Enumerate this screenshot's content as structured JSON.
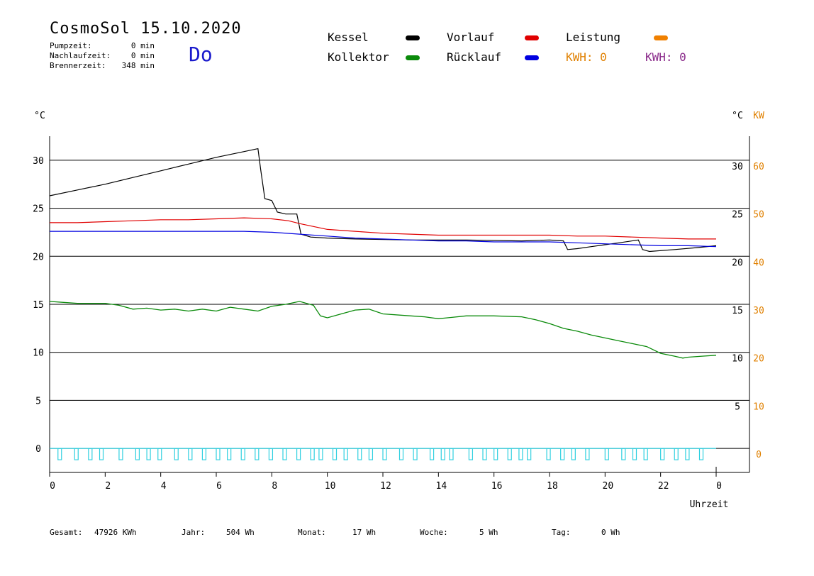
{
  "header": {
    "title": "CosmoSol 15.10.2020",
    "weekday": "Do",
    "stats": [
      {
        "label": "Pumpzeit:",
        "value": "0 min"
      },
      {
        "label": "Nachlaufzeit:",
        "value": "0 min"
      },
      {
        "label": "Brennerzeit:",
        "value": "348 min"
      }
    ]
  },
  "legend": {
    "items": [
      {
        "label": "Kessel",
        "color": "#000000"
      },
      {
        "label": "Vorlauf",
        "color": "#e00000"
      },
      {
        "label": "Leistung",
        "color": "#f08000"
      },
      {
        "label": "Kollektor",
        "color": "#0a8a0a"
      },
      {
        "label": "Rücklauf",
        "color": "#0000e0"
      }
    ],
    "kwh_orange": "KWH: 0",
    "kwh_purple": "KWH: 0",
    "kwh_orange_color": "#e08000",
    "kwh_purple_color": "#8a2a8a"
  },
  "footer": {
    "gesamt_label": "Gesamt:",
    "gesamt_value": "47926 KWh",
    "jahr_label": "Jahr:",
    "jahr_value": "504 Wh",
    "monat_label": "Monat:",
    "monat_value": "17 Wh",
    "woche_label": "Woche:",
    "woche_value": "5 Wh",
    "tag_label": "Tag:",
    "tag_value": "0 Wh"
  },
  "chart_data": {
    "type": "line",
    "xlabel": "Uhrzeit",
    "x_ticks": [
      "0",
      "2",
      "4",
      "6",
      "8",
      "10",
      "12",
      "14",
      "16",
      "18",
      "20",
      "22",
      "0"
    ],
    "x_range": [
      0,
      24
    ],
    "y_left_unit": "°C",
    "y_right_unit": "°C",
    "y_right2_unit": "KW",
    "y_range": [
      -2.5,
      32.5
    ],
    "y_ticks_left": [
      "0",
      "5",
      "10",
      "15",
      "20",
      "25",
      "30"
    ],
    "y_ticks_right": [
      "5",
      "10",
      "15",
      "20",
      "25",
      "30"
    ],
    "y_ticks_kw": [
      "0",
      "10",
      "20",
      "30",
      "40",
      "50",
      "60"
    ],
    "grid": true,
    "series": [
      {
        "name": "Kessel",
        "color": "#000000",
        "points": [
          [
            0,
            26.3
          ],
          [
            1,
            26.9
          ],
          [
            2,
            27.5
          ],
          [
            3,
            28.2
          ],
          [
            4,
            28.9
          ],
          [
            5,
            29.6
          ],
          [
            6,
            30.3
          ],
          [
            7,
            30.9
          ],
          [
            7.5,
            31.2
          ],
          [
            7.6,
            29
          ],
          [
            7.75,
            26
          ],
          [
            8,
            25.8
          ],
          [
            8.2,
            24.6
          ],
          [
            8.5,
            24.4
          ],
          [
            8.9,
            24.4
          ],
          [
            9.05,
            22.3
          ],
          [
            9.4,
            22.0
          ],
          [
            10,
            21.9
          ],
          [
            11,
            21.8
          ],
          [
            13,
            21.7
          ],
          [
            15,
            21.7
          ],
          [
            17,
            21.6
          ],
          [
            18,
            21.7
          ],
          [
            18.5,
            21.6
          ],
          [
            18.65,
            20.7
          ],
          [
            19,
            20.8
          ],
          [
            19.5,
            21.0
          ],
          [
            20,
            21.2
          ],
          [
            20.5,
            21.4
          ],
          [
            21.2,
            21.7
          ],
          [
            21.35,
            20.7
          ],
          [
            21.6,
            20.5
          ],
          [
            22.5,
            20.7
          ],
          [
            23.3,
            20.9
          ],
          [
            24,
            21.1
          ]
        ]
      },
      {
        "name": "Vorlauf",
        "color": "#e00000",
        "points": [
          [
            0,
            23.5
          ],
          [
            1,
            23.5
          ],
          [
            2,
            23.6
          ],
          [
            3,
            23.7
          ],
          [
            4,
            23.8
          ],
          [
            5,
            23.8
          ],
          [
            6,
            23.9
          ],
          [
            7,
            24.0
          ],
          [
            8,
            23.9
          ],
          [
            8.6,
            23.7
          ],
          [
            9,
            23.4
          ],
          [
            9.5,
            23.1
          ],
          [
            10,
            22.8
          ],
          [
            11,
            22.6
          ],
          [
            12,
            22.4
          ],
          [
            13,
            22.3
          ],
          [
            14,
            22.2
          ],
          [
            16,
            22.2
          ],
          [
            18,
            22.2
          ],
          [
            19,
            22.1
          ],
          [
            20,
            22.1
          ],
          [
            21,
            22.0
          ],
          [
            22,
            21.9
          ],
          [
            23,
            21.8
          ],
          [
            24,
            21.8
          ]
        ]
      },
      {
        "name": "Rücklauf",
        "color": "#0000e0",
        "points": [
          [
            0,
            22.6
          ],
          [
            2,
            22.6
          ],
          [
            4,
            22.6
          ],
          [
            6,
            22.6
          ],
          [
            7,
            22.6
          ],
          [
            8,
            22.5
          ],
          [
            9,
            22.3
          ],
          [
            10,
            22.1
          ],
          [
            11,
            21.9
          ],
          [
            12,
            21.8
          ],
          [
            13,
            21.7
          ],
          [
            14,
            21.6
          ],
          [
            15,
            21.6
          ],
          [
            16,
            21.5
          ],
          [
            17,
            21.5
          ],
          [
            18,
            21.5
          ],
          [
            19,
            21.4
          ],
          [
            20,
            21.3
          ],
          [
            21,
            21.2
          ],
          [
            22,
            21.1
          ],
          [
            23,
            21.1
          ],
          [
            24,
            21.0
          ]
        ]
      },
      {
        "name": "Kollektor",
        "color": "#0a8a0a",
        "points": [
          [
            0,
            15.3
          ],
          [
            0.5,
            15.2
          ],
          [
            1,
            15.1
          ],
          [
            2,
            15.1
          ],
          [
            2.5,
            14.9
          ],
          [
            3,
            14.5
          ],
          [
            3.5,
            14.6
          ],
          [
            4,
            14.4
          ],
          [
            4.5,
            14.5
          ],
          [
            5,
            14.3
          ],
          [
            5.5,
            14.5
          ],
          [
            6,
            14.3
          ],
          [
            6.5,
            14.7
          ],
          [
            7,
            14.5
          ],
          [
            7.5,
            14.3
          ],
          [
            8,
            14.8
          ],
          [
            8.5,
            15.0
          ],
          [
            9,
            15.3
          ],
          [
            9.5,
            14.9
          ],
          [
            9.75,
            13.8
          ],
          [
            10,
            13.6
          ],
          [
            10.5,
            14.0
          ],
          [
            11,
            14.4
          ],
          [
            11.5,
            14.5
          ],
          [
            12,
            14.0
          ],
          [
            13,
            13.8
          ],
          [
            13.5,
            13.7
          ],
          [
            14,
            13.5
          ],
          [
            15,
            13.8
          ],
          [
            16,
            13.8
          ],
          [
            17,
            13.7
          ],
          [
            17.5,
            13.4
          ],
          [
            18,
            13.0
          ],
          [
            18.5,
            12.5
          ],
          [
            19,
            12.2
          ],
          [
            19.5,
            11.8
          ],
          [
            20,
            11.5
          ],
          [
            20.5,
            11.2
          ],
          [
            21,
            10.9
          ],
          [
            21.5,
            10.6
          ],
          [
            22,
            9.9
          ],
          [
            22.5,
            9.6
          ],
          [
            22.8,
            9.4
          ],
          [
            23,
            9.5
          ],
          [
            23.5,
            9.6
          ],
          [
            24,
            9.7
          ]
        ]
      }
    ],
    "pulses": [
      0.3,
      0.9,
      1.4,
      1.8,
      2.5,
      3.1,
      3.5,
      3.9,
      4.5,
      5.0,
      5.5,
      6.0,
      6.4,
      6.9,
      7.4,
      7.9,
      8.4,
      8.9,
      9.4,
      9.7,
      10.2,
      10.6,
      11.1,
      11.5,
      12.0,
      12.6,
      13.1,
      13.7,
      14.1,
      14.4,
      15.1,
      15.6,
      16.0,
      16.5,
      16.9,
      17.2,
      17.9,
      18.4,
      18.8,
      19.3,
      20.0,
      20.6,
      21.0,
      21.4,
      22.0,
      22.5,
      22.9,
      23.4
    ]
  }
}
